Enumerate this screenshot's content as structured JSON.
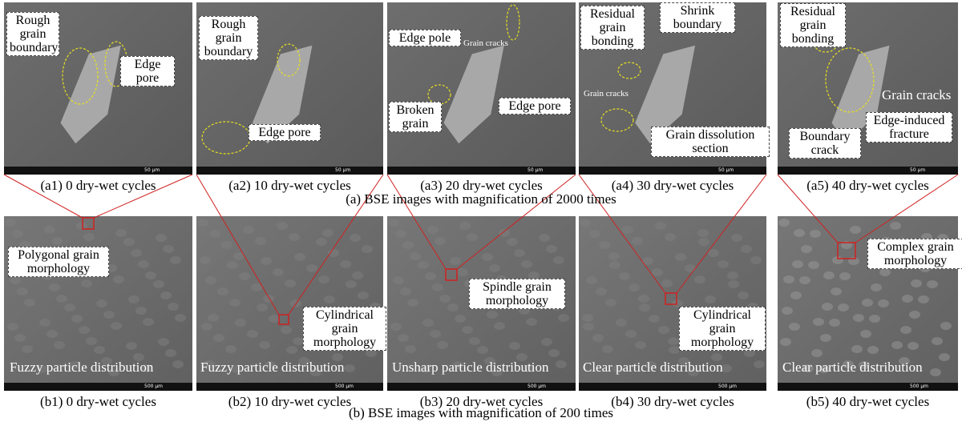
{
  "rows": [
    {
      "caption": "(a) BSE images with magnification of 2000 times",
      "panels": [
        {
          "caption": "(a1) 0 dry-wet cycles",
          "scale": "50 μm",
          "annotations": [
            "Rough grain boundary",
            "Edge pore"
          ]
        },
        {
          "caption": "(a2) 10 dry-wet cycles",
          "scale": "50 μm",
          "annotations": [
            "Rough grain boundary",
            "Edge pore"
          ]
        },
        {
          "caption": "(a3) 20 dry-wet cycles",
          "scale": "50 μm",
          "annotations": [
            "Edge pole",
            "Grain cracks",
            "Edge pore",
            "Broken grain"
          ]
        },
        {
          "caption": "(a4) 30 dry-wet cycles",
          "scale": "50 μm",
          "annotations": [
            "Residual grain bonding",
            "Shrink boundary",
            "Grain cracks",
            "Grain dissolution section"
          ]
        },
        {
          "caption": "(a5) 40 dry-wet cycles",
          "scale": "50 μm",
          "annotations": [
            "Residual grain bonding",
            "Grain cracks",
            "Boundary crack",
            "Edge-induced fracture"
          ]
        }
      ]
    },
    {
      "caption": "(b) BSE images with magnification of 200 times",
      "panels": [
        {
          "caption": "(b1) 0 dry-wet cycles",
          "scale": "500 μm",
          "annotations": [
            "Polygonal grain morphology",
            "Fuzzy particle distribution"
          ]
        },
        {
          "caption": "(b2) 10 dry-wet cycles",
          "scale": "500 μm",
          "annotations": [
            "Cylindrical grain morphology",
            "Fuzzy particle distribution"
          ]
        },
        {
          "caption": "(b3) 20 dry-wet cycles",
          "scale": "500 μm",
          "annotations": [
            "Spindle grain morphology",
            "Unsharp particle distribution"
          ]
        },
        {
          "caption": "(b4) 30 dry-wet cycles",
          "scale": "500 μm",
          "annotations": [
            "Cylindrical grain morphology",
            "Clear particle distribution"
          ]
        },
        {
          "caption": "(b5) 40 dry-wet cycles",
          "scale": "500 μm",
          "annotations": [
            "Complex grain morphology",
            "Clear particle distribution"
          ]
        }
      ]
    }
  ]
}
